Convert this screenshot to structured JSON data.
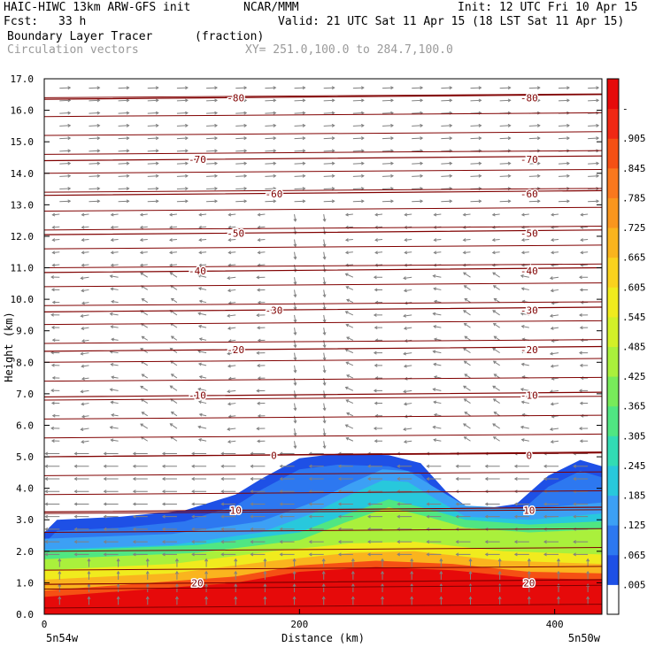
{
  "header": {
    "model": "HAIC-HIWC 13km ARW-GFS init",
    "org": "NCAR/MMM",
    "init": "Init: 12 UTC Fri 10 Apr 15",
    "fcst_label": "Fcst:",
    "fcst_value": "33 h",
    "valid": "Valid: 21 UTC Sat 11 Apr 15 (18 LST Sat 11 Apr 15)",
    "field_name": "Boundary Layer Tracer",
    "field_unit": "(fraction)",
    "vector_name": "Circulation vectors",
    "xy_range": "XY= 251.0,100.0 to 284.7,100.0"
  },
  "chart_data": {
    "type": "heatmap",
    "title": "Boundary Layer Tracer (fraction)",
    "xlabel": "Distance (km)",
    "ylabel": "Height (km)",
    "xlim": [
      0,
      437
    ],
    "ylim": [
      0,
      17
    ],
    "x_ticks": [
      0,
      200,
      400
    ],
    "y_ticks": [
      "0.0",
      "1.0",
      "2.0",
      "3.0",
      "4.0",
      "5.0",
      "6.0",
      "7.0",
      "8.0",
      "9.0",
      "10.0",
      "11.0",
      "12.0",
      "13.0",
      "14.0",
      "15.0",
      "16.0",
      "17.0"
    ],
    "x_end_labels": [
      "5n54w",
      "5n50w"
    ],
    "colorbar": {
      "labels": [
        ".005",
        ".065",
        ".125",
        ".185",
        ".245",
        ".305",
        ".365",
        ".425",
        ".485",
        ".545",
        ".605",
        ".665",
        ".725",
        ".785",
        ".845",
        ".905",
        "-"
      ],
      "colors": [
        "#ffffff",
        "#1e50e6",
        "#2d78f0",
        "#3ca0f5",
        "#28c8dc",
        "#32dcb4",
        "#50e682",
        "#78eb5a",
        "#aaf03c",
        "#d2f028",
        "#f0eb1e",
        "#fad21e",
        "#fab41e",
        "#fa961e",
        "#fa781e",
        "#f55014",
        "#f02814",
        "#e60a0a"
      ]
    },
    "tracer_region": {
      "top_km": [
        [
          0,
          2.6
        ],
        [
          10,
          3.0
        ],
        [
          60,
          3.1
        ],
        [
          110,
          3.3
        ],
        [
          150,
          3.8
        ],
        [
          170,
          4.3
        ],
        [
          200,
          4.95
        ],
        [
          230,
          5.1
        ],
        [
          270,
          5.05
        ],
        [
          295,
          4.8
        ],
        [
          315,
          3.9
        ],
        [
          335,
          3.3
        ],
        [
          370,
          3.5
        ],
        [
          395,
          4.4
        ],
        [
          420,
          4.9
        ],
        [
          437,
          4.7
        ]
      ],
      "cyan_top": [
        [
          0,
          2.05
        ],
        [
          100,
          2.2
        ],
        [
          170,
          2.6
        ],
        [
          210,
          3.2
        ],
        [
          240,
          3.8
        ],
        [
          265,
          4.25
        ],
        [
          285,
          4.2
        ],
        [
          305,
          3.7
        ],
        [
          330,
          3.1
        ],
        [
          380,
          3.0
        ],
        [
          437,
          3.2
        ]
      ],
      "green_top": [
        [
          0,
          1.75
        ],
        [
          120,
          1.95
        ],
        [
          200,
          2.35
        ],
        [
          235,
          2.9
        ],
        [
          270,
          3.4
        ],
        [
          300,
          3.1
        ],
        [
          330,
          2.75
        ],
        [
          380,
          2.6
        ],
        [
          437,
          2.7
        ]
      ],
      "orange_top": [
        [
          0,
          1.1
        ],
        [
          100,
          1.3
        ],
        [
          180,
          1.7
        ],
        [
          240,
          1.95
        ],
        [
          290,
          2.0
        ],
        [
          360,
          1.7
        ],
        [
          437,
          1.6
        ]
      ],
      "red_top": [
        [
          0,
          0.55
        ],
        [
          100,
          0.85
        ],
        [
          150,
          1.0
        ],
        [
          200,
          1.35
        ],
        [
          260,
          1.5
        ],
        [
          320,
          1.4
        ],
        [
          380,
          1.15
        ],
        [
          437,
          1.1
        ]
      ]
    },
    "isotherms": [
      {
        "value": 20,
        "height_km": 0.95,
        "label": "20"
      },
      {
        "value": 10,
        "height_km": 3.25,
        "label": "10"
      },
      {
        "value": 0,
        "height_km": 5.0,
        "label": "0"
      },
      {
        "value": -10,
        "height_km": 6.9,
        "label": "-10"
      },
      {
        "value": -20,
        "height_km": 8.35,
        "label": "-20"
      },
      {
        "value": -30,
        "height_km": 9.6,
        "label": "-30"
      },
      {
        "value": -40,
        "height_km": 10.85,
        "label": "-40"
      },
      {
        "value": -50,
        "height_km": 12.05,
        "label": "-50"
      },
      {
        "value": -60,
        "height_km": 13.3,
        "label": "-60"
      },
      {
        "value": -70,
        "height_km": 14.4,
        "label": "-70"
      },
      {
        "value": -80,
        "height_km": 16.35,
        "label": "-80"
      }
    ],
    "grid": false
  }
}
